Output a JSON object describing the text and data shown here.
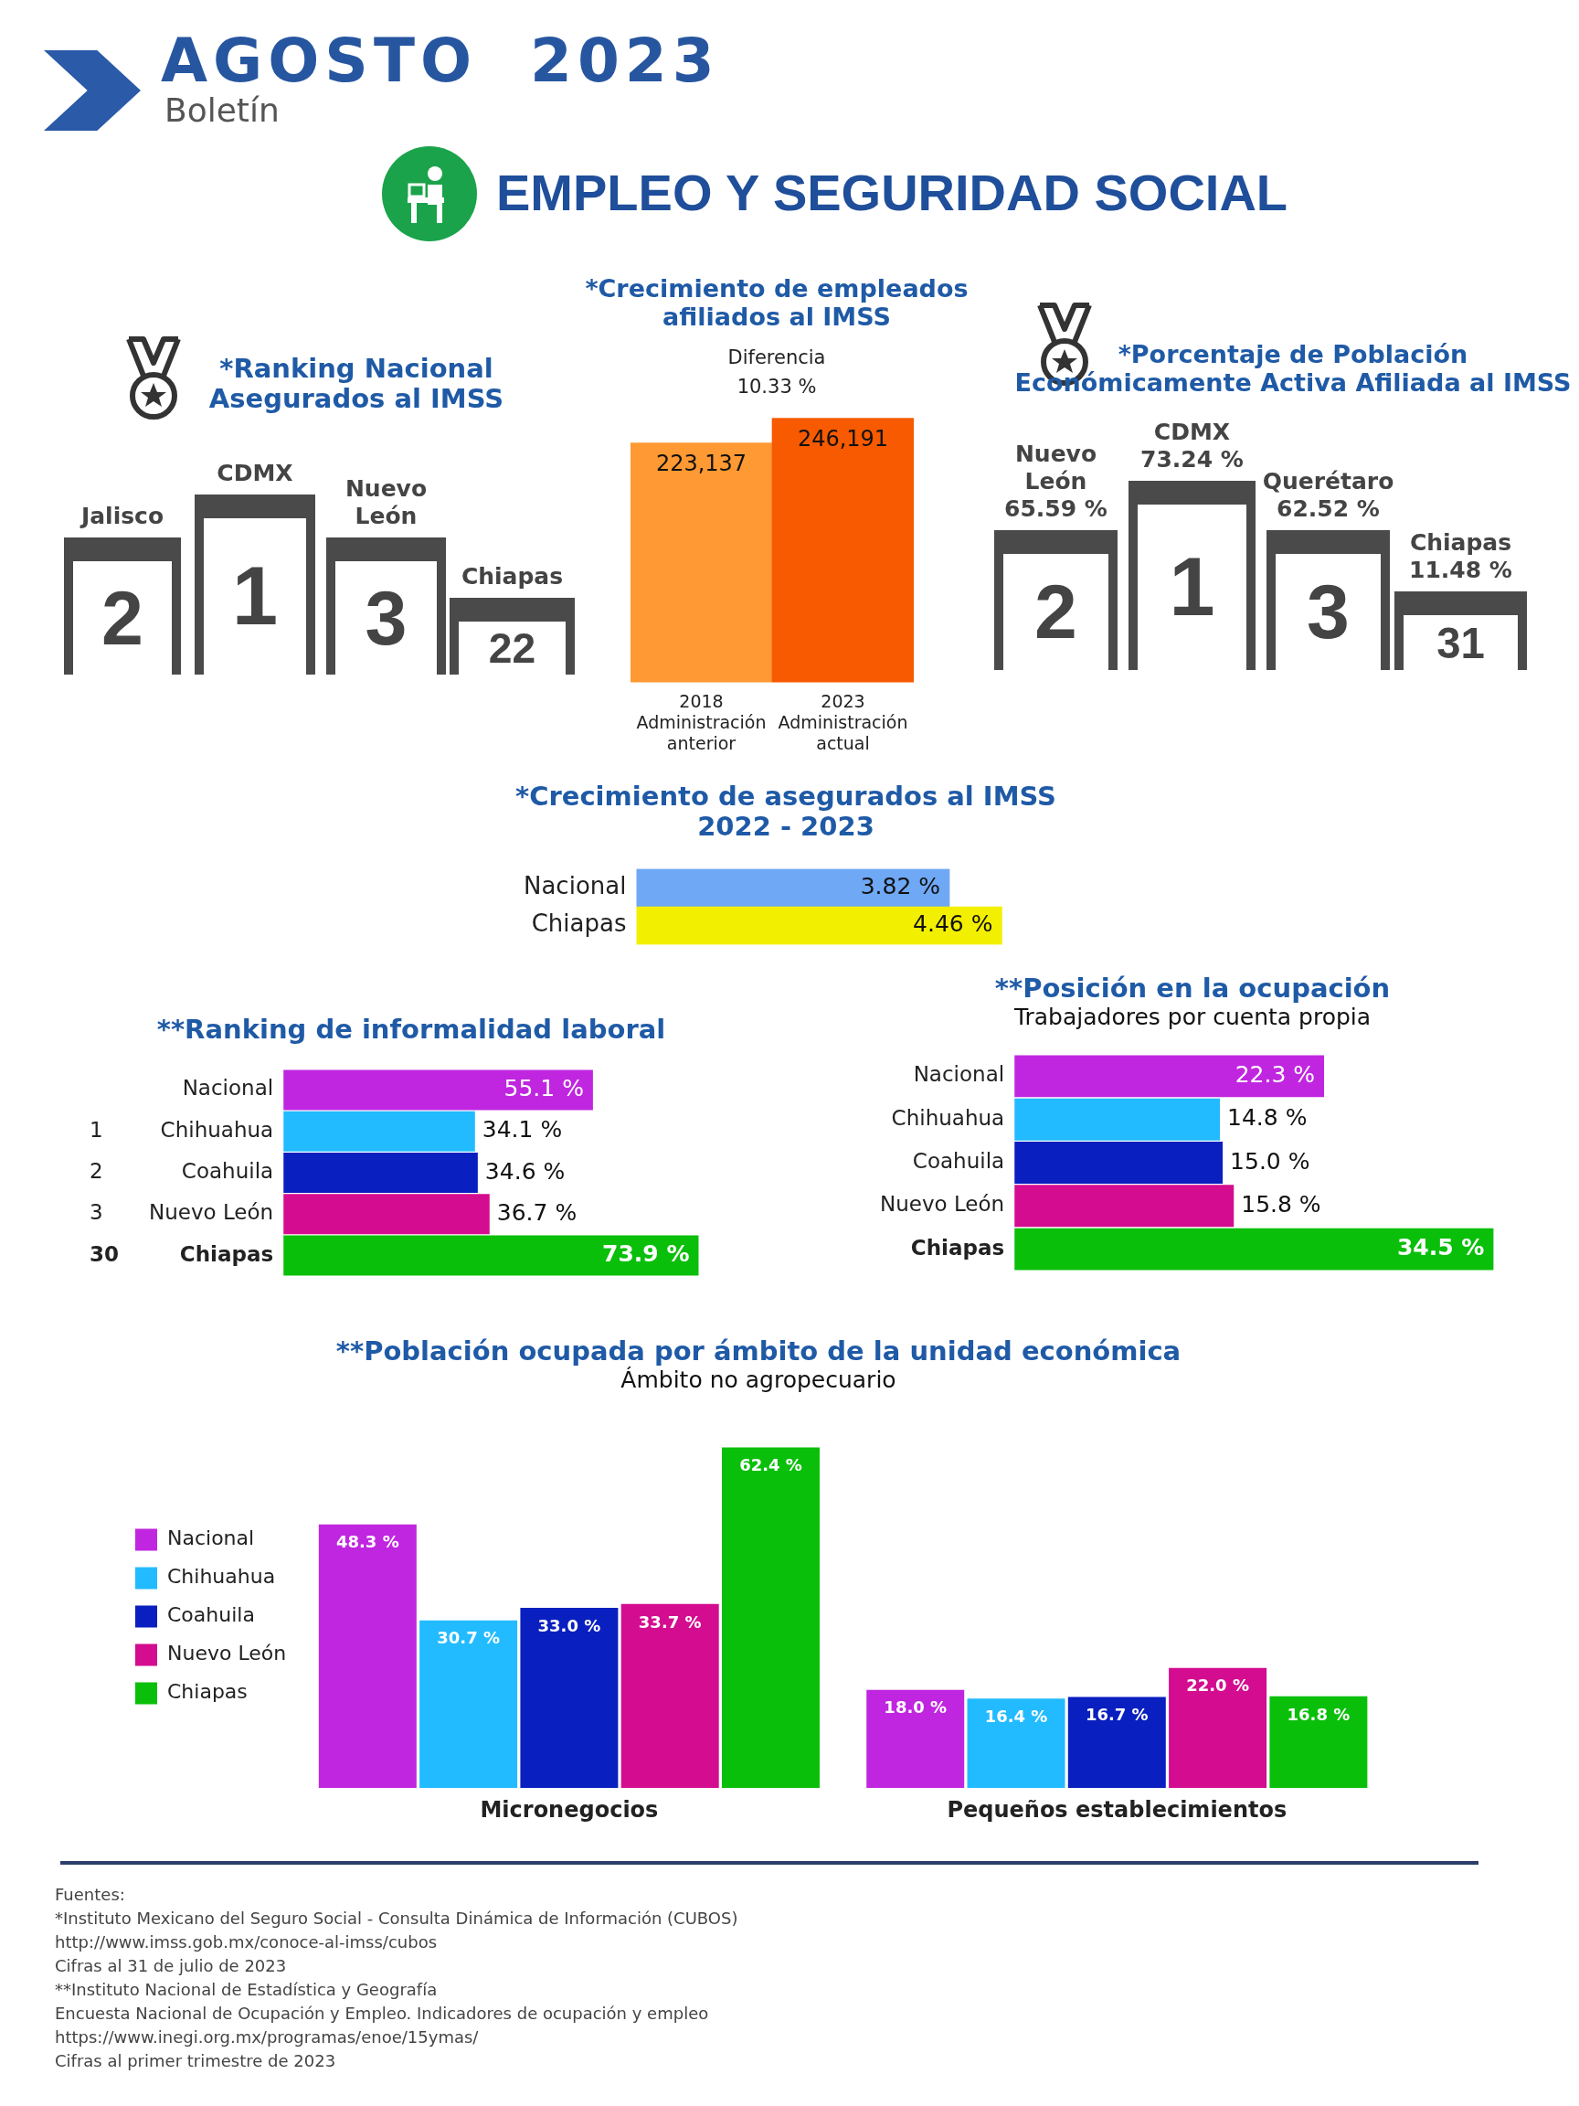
{
  "chart_data": [
    {
      "type": "other",
      "title": "AGOSTO  2023",
      "subtitle": "Boletín",
      "annotations": [
        "EMPLEO Y SEGURIDAD SOCIAL"
      ]
    },
    {
      "type": "other",
      "title": "*Ranking Nacional Asegurados al IMSS",
      "annotations": [
        "Jalisco",
        "2",
        "CDMX",
        "1",
        "Nuevo León",
        "3",
        "Chiapas",
        "22"
      ]
    },
    {
      "type": "bar",
      "title": "*Crecimiento de empleados afiliados al IMSS",
      "annotations": [
        "Diferencia\n10.33 %"
      ],
      "categories": [
        "2018\nAdministración\nanterior",
        "2023\nAdministración\nactual"
      ],
      "values": [
        223137,
        246191
      ],
      "colors": [
        "#ff9933",
        "#f75a00"
      ],
      "value_labels": [
        "223,137",
        "246,191"
      ]
    },
    {
      "type": "other",
      "title": "*Porcentaje de Población Económicamente Activa Afiliada al IMSS",
      "annotations": [
        "Nuevo León\n65.59 %",
        "2",
        "CDMX\n73.24 %",
        "1",
        "Querétaro\n62.52 %",
        "3",
        "Chiapas\n11.48 %",
        "31"
      ]
    },
    {
      "type": "bar",
      "orientation": "horizontal",
      "title": "*Crecimiento de asegurados al IMSS\n2022 - 2023",
      "categories": [
        "Nacional",
        "Chiapas"
      ],
      "values": [
        3.82,
        4.46
      ],
      "colors": [
        "#6fa8f5",
        "#f2f000"
      ],
      "value_labels": [
        "3.82 %",
        "4.46 %"
      ]
    },
    {
      "type": "bar",
      "orientation": "horizontal",
      "title": "**Ranking de informalidad laboral",
      "categories": [
        "Nacional",
        "Chihuahua",
        "Coahuila",
        "Nuevo León",
        "Chiapas"
      ],
      "values": [
        55.1,
        34.1,
        34.6,
        36.7,
        73.9
      ],
      "colors": [
        "#c026e0",
        "#22bbff",
        "#0a1fbf",
        "#d40c8f",
        "#0abf0a"
      ],
      "value_labels": [
        "55.1 %",
        "34.1 %",
        "34.6 %",
        "36.7 %",
        "73.9 %"
      ],
      "annotations": [
        "1",
        "2",
        "3",
        "30"
      ]
    },
    {
      "type": "bar",
      "orientation": "horizontal",
      "title": "**Posición en la ocupación",
      "subtitle": "Trabajadores por cuenta propia",
      "categories": [
        "Nacional",
        "Chihuahua",
        "Coahuila",
        "Nuevo León",
        "Chiapas"
      ],
      "values": [
        22.3,
        14.8,
        15.0,
        15.8,
        34.5
      ],
      "colors": [
        "#c026e0",
        "#22bbff",
        "#0a1fbf",
        "#d40c8f",
        "#0abf0a"
      ],
      "value_labels": [
        "22.3 %",
        "14.8 %",
        "15.0 %",
        "15.8 %",
        "34.5 %"
      ]
    },
    {
      "type": "bar",
      "title": "**Población ocupada por ámbito de la unidad económica",
      "subtitle": "Ámbito no agropecuario",
      "categories": [
        "Micronegocios",
        "Pequeños establecimientos"
      ],
      "legend": "left",
      "series": [
        {
          "name": "Nacional",
          "color": "#c026e0",
          "values": [
            48.3,
            18.0
          ],
          "value_labels": [
            "48.3 %",
            "18.0 %"
          ]
        },
        {
          "name": "Chihuahua",
          "color": "#22bbff",
          "values": [
            30.7,
            16.4
          ],
          "value_labels": [
            "30.7 %",
            "16.4 %"
          ]
        },
        {
          "name": "Coahuila",
          "color": "#0a1fbf",
          "values": [
            33.0,
            16.7
          ],
          "value_labels": [
            "33.0 %",
            "16.7 %"
          ]
        },
        {
          "name": "Nuevo León",
          "color": "#d40c8f",
          "values": [
            33.7,
            22.0
          ],
          "value_labels": [
            "33.7 %",
            "22.0 %"
          ]
        },
        {
          "name": "Chiapas",
          "color": "#0abf0a",
          "values": [
            62.4,
            16.8
          ],
          "value_labels": [
            "62.4 %",
            "16.8 %"
          ]
        }
      ]
    },
    {
      "type": "other",
      "title": "Fuentes:",
      "annotations": [
        "*Instituto Mexicano del Seguro Social - Consulta Dinámica de Información (CUBOS)",
        "http://www.imss.gob.mx/conoce-al-imss/cubos",
        "Cifras al 31 de julio de 2023",
        "**Instituto Nacional de Estadística y Geografía",
        "Encuesta Nacional de Ocupación y Empleo. Indicadores de ocupación y empleo",
        "https://www.inegi.org.mx/programas/enoe/15ymas/",
        "Cifras al primer trimestre de 2023"
      ]
    }
  ]
}
